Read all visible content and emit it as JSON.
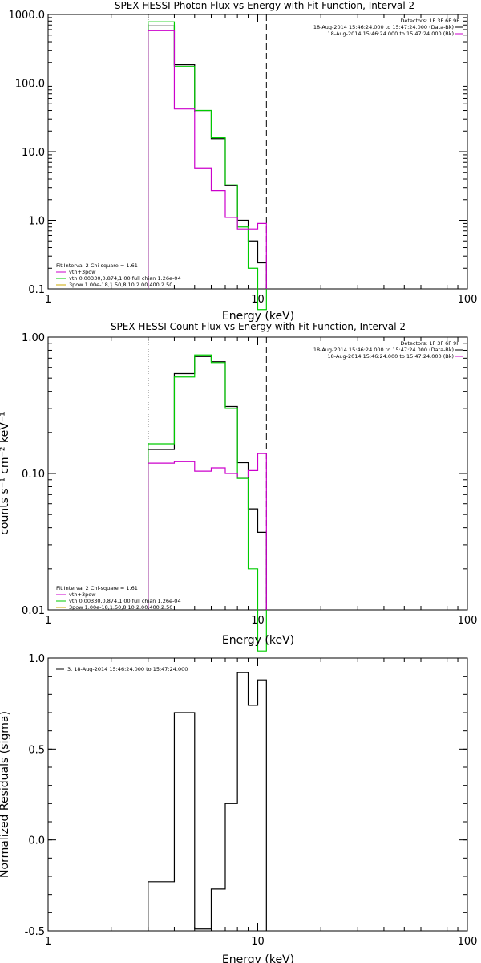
{
  "colors": {
    "observed": "#000000",
    "total_fit": "#00cc00",
    "vth": "#00cc00",
    "bpow": "#cc00cc",
    "bk": "#cc00cc",
    "fit_legend_thermal": "#00cc00",
    "fit_legend_nonthermal": "#ccaa00",
    "fit_legend_total": "#cc00cc"
  },
  "chart_data": [
    {
      "type": "line",
      "title": "SPEX HESSI Photon Flux vs Energy with Fit Function, Interval 2",
      "xlabel": "Energy (keV)",
      "ylabel": "",
      "xscale": "log",
      "yscale": "log",
      "xlim": [
        1,
        100
      ],
      "ylim": [
        0.1,
        1000
      ],
      "xticks": [
        {
          "v": 1,
          "label": "1"
        },
        {
          "v": 10,
          "label": "10"
        },
        {
          "v": 100,
          "label": "100"
        }
      ],
      "yticks": [
        {
          "v": 0.1,
          "label": "0.1"
        },
        {
          "v": 1,
          "label": "1.0"
        },
        {
          "v": 10,
          "label": "10.0"
        },
        {
          "v": 100,
          "label": "100.0"
        },
        {
          "v": 1000,
          "label": "1000.0"
        }
      ],
      "vlines": [
        {
          "x": 3.0,
          "style": "dotted",
          "color": "#000000"
        },
        {
          "x": 11.0,
          "style": "dashed",
          "color": "#000000"
        }
      ],
      "edges": [
        3.0,
        4.0,
        5.0,
        6.0,
        7.0,
        8.0,
        9.0,
        10.0,
        11.0
      ],
      "series": [
        {
          "name": "",
          "color": "#000000",
          "values": [
            680,
            185,
            38,
            15.5,
            3.2,
            1.0,
            0.5,
            0.24
          ]
        },
        {
          "name": "",
          "color": "#00cc00",
          "values": [
            780,
            175,
            40,
            16,
            3.3,
            0.8,
            0.2,
            0.05
          ]
        },
        {
          "name": "",
          "color": "#cc00cc",
          "values": [
            580,
            42,
            5.8,
            2.7,
            1.1,
            0.75,
            0.75,
            0.9
          ]
        }
      ],
      "detectors": "Detectors: 1F 3F 6F 9F",
      "legend_right": [
        {
          "text": "18-Aug-2014 15:46:24.000 to 15:47:24.000 (Data-Bk)",
          "color": "#000000"
        },
        {
          "text": "18-Aug-2014 15:46:24.000 to 15:47:24.000 (Bk)",
          "color": "#cc00cc"
        }
      ],
      "legend_fit_title": "Fit Interval 2   Chi-square = 1.61",
      "legend_fit": [
        {
          "text": "vth+3pow",
          "color": "#cc00cc"
        },
        {
          "text": "vth 0.00330,0.874,1.00  full chian 1.26e-04",
          "color": "#00cc00"
        },
        {
          "text": "3pow 1.00e-18,1.50,8.10,2.00,400,2.50",
          "color": "#ccaa00"
        }
      ]
    },
    {
      "type": "line",
      "title": "SPEX HESSI Count Flux vs Energy with Fit Function, Interval 2",
      "xlabel": "Energy (keV)",
      "ylabel": "counts s⁻¹ cm⁻² keV⁻¹",
      "xscale": "log",
      "yscale": "log",
      "xlim": [
        1,
        100
      ],
      "ylim": [
        0.01,
        1.0
      ],
      "xticks": [
        {
          "v": 1,
          "label": "1"
        },
        {
          "v": 10,
          "label": "10"
        },
        {
          "v": 100,
          "label": "100"
        }
      ],
      "yticks": [
        {
          "v": 0.01,
          "label": "0.01"
        },
        {
          "v": 0.1,
          "label": "0.10"
        },
        {
          "v": 1.0,
          "label": "1.00"
        }
      ],
      "vlines": [
        {
          "x": 3.0,
          "style": "dotted",
          "color": "#000000"
        },
        {
          "x": 11.0,
          "style": "dashed",
          "color": "#000000"
        }
      ],
      "edges": [
        3.0,
        4.0,
        5.0,
        6.0,
        7.0,
        8.0,
        9.0,
        10.0,
        11.0
      ],
      "series": [
        {
          "name": "",
          "color": "#000000",
          "values": [
            0.15,
            0.54,
            0.72,
            0.66,
            0.31,
            0.12,
            0.055,
            0.037
          ]
        },
        {
          "name": "",
          "color": "#00cc00",
          "values": [
            0.165,
            0.51,
            0.74,
            0.65,
            0.3,
            0.092,
            0.02,
            0.005
          ]
        },
        {
          "name": "",
          "color": "#cc00cc",
          "values": [
            0.119,
            0.122,
            0.104,
            0.11,
            0.1,
            0.094,
            0.105,
            0.14
          ]
        }
      ],
      "detectors": "Detectors: 1F 3F 6F 9F",
      "legend_right": [
        {
          "text": "18-Aug-2014 15:46:24.000 to 15:47:24.000 (Data-Bk)",
          "color": "#000000"
        },
        {
          "text": "18-Aug-2014 15:46:24.000 to 15:47:24.000 (Bk)",
          "color": "#cc00cc"
        }
      ],
      "legend_fit_title": "Fit Interval 2   Chi-square = 1.61",
      "legend_fit": [
        {
          "text": "vth+3pow",
          "color": "#cc00cc"
        },
        {
          "text": "vth 0.00330,0.874,1.00  full chian 1.26e-04",
          "color": "#00cc00"
        },
        {
          "text": "3pow 1.00e-18,1.50,8.10,2.00,400,2.50",
          "color": "#ccaa00"
        }
      ]
    },
    {
      "type": "line",
      "title": "",
      "xlabel": "Energy (keV)",
      "ylabel": "Normalized Residuals (sigma)",
      "xscale": "log",
      "yscale": "linear",
      "xlim": [
        1,
        100
      ],
      "ylim": [
        -0.5,
        1.0
      ],
      "xticks": [
        {
          "v": 1,
          "label": "1"
        },
        {
          "v": 10,
          "label": "10"
        },
        {
          "v": 100,
          "label": "100"
        }
      ],
      "yticks": [
        {
          "v": -0.5,
          "label": "-0.5"
        },
        {
          "v": 0.0,
          "label": "0.0"
        },
        {
          "v": 0.5,
          "label": "0.5"
        },
        {
          "v": 1.0,
          "label": "1.0"
        }
      ],
      "edges": [
        3.0,
        4.0,
        5.0,
        6.0,
        7.0,
        8.0,
        9.0,
        10.0,
        11.0
      ],
      "series": [
        {
          "name": "",
          "color": "#000000",
          "values": [
            -0.23,
            0.7,
            -0.49,
            -0.27,
            0.2,
            0.92,
            0.74,
            0.88
          ]
        }
      ],
      "legend_right": [],
      "legend_residual": "3. 18-Aug-2014 15:46:24.000 to 15:47:24.000"
    }
  ]
}
